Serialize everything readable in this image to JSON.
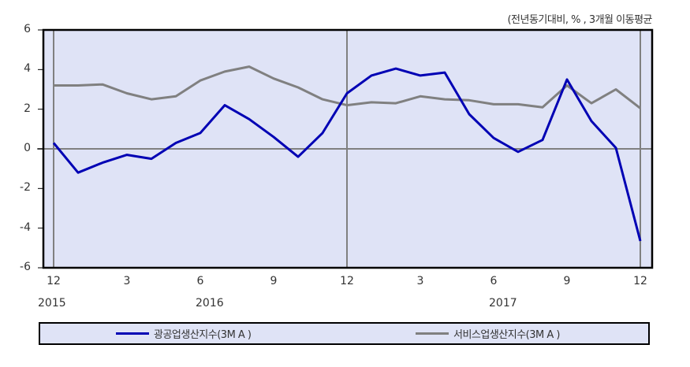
{
  "chart_data": {
    "type": "line",
    "title": "",
    "unit_note": "(전년동기대비, % , 3개월 이동평균",
    "xlabel": "",
    "ylabel": "",
    "ylim": [
      -6,
      6
    ],
    "yticks": [
      6,
      4,
      2,
      0,
      -2,
      -4,
      -6
    ],
    "x": [
      "2015-12",
      "2016-01",
      "2016-02",
      "2016-03",
      "2016-04",
      "2016-05",
      "2016-06",
      "2016-07",
      "2016-08",
      "2016-09",
      "2016-10",
      "2016-11",
      "2016-12",
      "2017-01",
      "2017-02",
      "2017-03",
      "2017-04",
      "2017-05",
      "2017-06",
      "2017-07",
      "2017-08",
      "2017-09",
      "2017-10",
      "2017-11",
      "2017-12"
    ],
    "xtick_labels": [
      {
        "index": 0,
        "label": "12"
      },
      {
        "index": 3,
        "label": "3"
      },
      {
        "index": 6,
        "label": "6"
      },
      {
        "index": 9,
        "label": "9"
      },
      {
        "index": 12,
        "label": "12"
      },
      {
        "index": 15,
        "label": "3"
      },
      {
        "index": 18,
        "label": "6"
      },
      {
        "index": 21,
        "label": "9"
      },
      {
        "index": 24,
        "label": "12"
      }
    ],
    "year_labels": [
      {
        "index": 0,
        "label": "2015"
      },
      {
        "index": 6,
        "label": "2016"
      },
      {
        "index": 18,
        "label": "2017"
      }
    ],
    "vertical_reference_lines_at_index": [
      0,
      12,
      24
    ],
    "horizontal_reference_line": 0,
    "grid": false,
    "legend_position": "bottom",
    "series": [
      {
        "name": "광공업생산지수(3M A )",
        "color": "#0000b4",
        "values": [
          0.3,
          -1.2,
          -0.7,
          -0.3,
          -0.5,
          0.3,
          0.8,
          2.2,
          1.5,
          0.6,
          -0.4,
          0.8,
          2.8,
          3.7,
          4.05,
          3.7,
          3.85,
          1.75,
          0.55,
          -0.15,
          0.45,
          3.5,
          1.4,
          0.05,
          -4.65
        ]
      },
      {
        "name": "서비스업생산지수(3M A )",
        "color": "#808080",
        "values": [
          3.2,
          3.2,
          3.25,
          2.8,
          2.5,
          2.65,
          3.45,
          3.9,
          4.15,
          3.55,
          3.1,
          2.5,
          2.2,
          2.35,
          2.3,
          2.65,
          2.5,
          2.45,
          2.25,
          2.25,
          2.1,
          3.2,
          2.3,
          3.0,
          2.05
        ]
      }
    ]
  },
  "colors": {
    "plot_background": "#dfe3f6",
    "frame": "#000000",
    "reference_line": "#808080"
  }
}
